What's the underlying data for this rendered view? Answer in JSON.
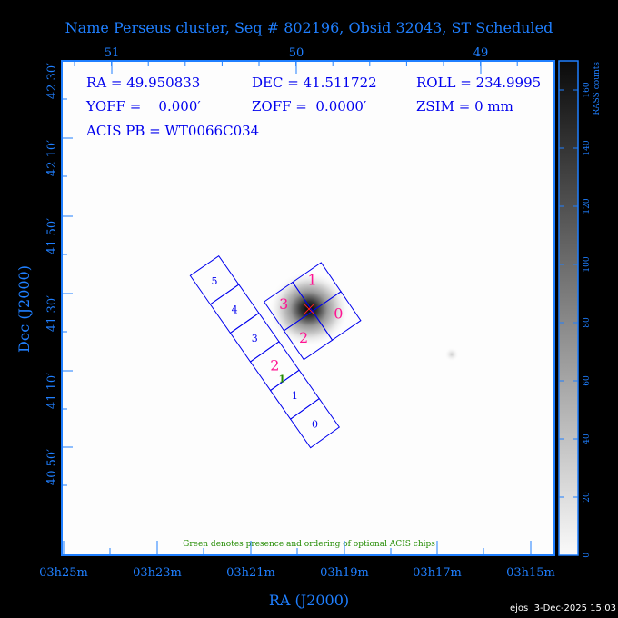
{
  "title": "Name Perseus cluster, Seq # 802196, Obsid 32043, ST Scheduled",
  "info": {
    "ra": "RA = 49.950833",
    "dec": "DEC = 41.511722",
    "roll": "ROLL = 234.9995",
    "yoff": "YOFF =    0.000′",
    "zoff": "ZOFF =  0.0000′",
    "zsim": "ZSIM = 0 mm",
    "acis_pb": "ACIS PB = WT0066C034"
  },
  "note": "Green denotes presence and ordering of optional ACIS chips",
  "footer": "ejos  3-Dec-2025 15:03",
  "colors": {
    "axis": "#1f7fff",
    "chip_outline": "#0000ee",
    "selected_chip": "#ff1493",
    "optional_chip": "#228b00"
  },
  "chart_data": {
    "type": "heatmap",
    "xlabel": "RA (J2000)",
    "ylabel": "Dec (J2000)",
    "x_ticks_bottom": [
      "03h25m",
      "03h23m",
      "03h21m",
      "03h19m",
      "03h17m",
      "03h15m"
    ],
    "x_ticks_top": [
      "51",
      "50",
      "49"
    ],
    "y_ticks": [
      "42 30′",
      "42 10′",
      "41 50′",
      "41 30′",
      "41 10′",
      "40 50′"
    ],
    "colorbar": {
      "label": "RASS counts",
      "ticks": [
        "0",
        "20",
        "40",
        "60",
        "80",
        "100",
        "120",
        "140",
        "160"
      ],
      "range": [
        0,
        170
      ],
      "colormap": "gray-inverted"
    },
    "source_peak": {
      "ra": 49.95,
      "dec": 41.51
    },
    "acis_i_chips": [
      {
        "label": "0",
        "selected": true
      },
      {
        "label": "1",
        "selected": true
      },
      {
        "label": "2",
        "selected": true
      },
      {
        "label": "3",
        "selected": true
      }
    ],
    "acis_s_chips": [
      {
        "label": "0",
        "selected": false
      },
      {
        "label": "1",
        "selected": false
      },
      {
        "label": "2",
        "selected": true,
        "optional_order": "1"
      },
      {
        "label": "3",
        "selected": false
      },
      {
        "label": "4",
        "selected": false
      },
      {
        "label": "5",
        "selected": false
      }
    ]
  }
}
